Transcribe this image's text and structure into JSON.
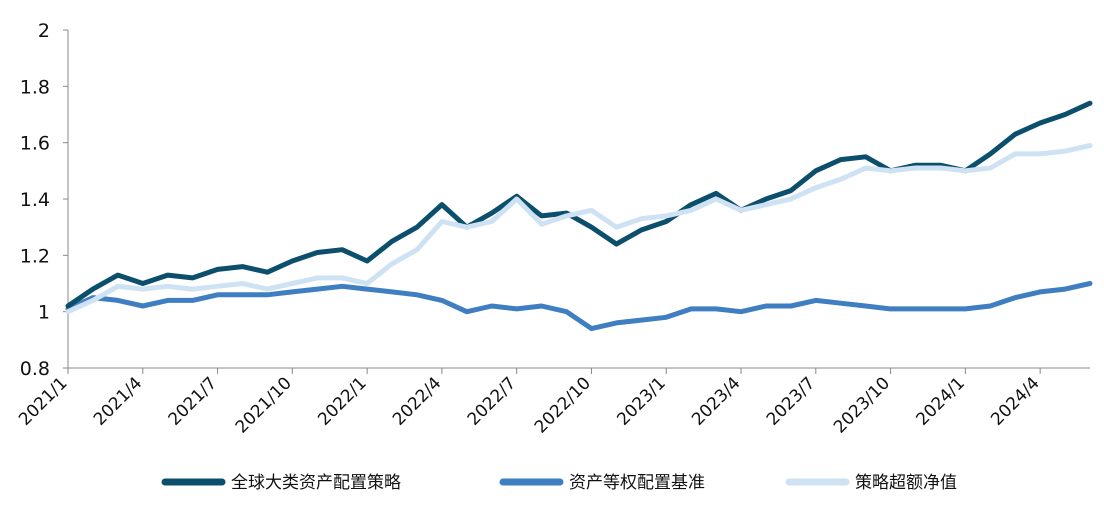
{
  "chart_data": {
    "type": "line",
    "title": "",
    "xlabel": "",
    "ylabel": "",
    "ylim": [
      0.8,
      2.0
    ],
    "yticks": [
      0.8,
      1,
      1.2,
      1.4,
      1.6,
      1.8,
      2
    ],
    "ytick_labels": [
      "0.8",
      "1",
      "1.2",
      "1.4",
      "1.6",
      "1.8",
      "2"
    ],
    "xticks": [
      "2021/1",
      "2021/4",
      "2021/7",
      "2021/10",
      "2022/1",
      "2022/4",
      "2022/7",
      "2022/10",
      "2023/1",
      "2023/4",
      "2023/7",
      "2023/10",
      "2024/1",
      "2024/4"
    ],
    "x": [
      "2021/1",
      "2021/2",
      "2021/3",
      "2021/4",
      "2021/5",
      "2021/6",
      "2021/7",
      "2021/8",
      "2021/9",
      "2021/10",
      "2021/11",
      "2021/12",
      "2022/1",
      "2022/2",
      "2022/3",
      "2022/4",
      "2022/5",
      "2022/6",
      "2022/7",
      "2022/8",
      "2022/9",
      "2022/10",
      "2022/11",
      "2022/12",
      "2023/1",
      "2023/2",
      "2023/3",
      "2023/4",
      "2023/5",
      "2023/6",
      "2023/7",
      "2023/8",
      "2023/9",
      "2023/10",
      "2023/11",
      "2023/12",
      "2024/1",
      "2024/2",
      "2024/3",
      "2024/4",
      "2024/5",
      "2024/6"
    ],
    "legend_position": "bottom",
    "grid": false,
    "series": [
      {
        "name": "全球大类资产配置策略",
        "color": "#0b4f6c",
        "values": [
          1.02,
          1.08,
          1.13,
          1.1,
          1.13,
          1.12,
          1.15,
          1.16,
          1.14,
          1.18,
          1.21,
          1.22,
          1.18,
          1.25,
          1.3,
          1.38,
          1.3,
          1.35,
          1.41,
          1.34,
          1.35,
          1.3,
          1.24,
          1.29,
          1.32,
          1.38,
          1.42,
          1.36,
          1.4,
          1.43,
          1.5,
          1.54,
          1.55,
          1.5,
          1.52,
          1.52,
          1.5,
          1.56,
          1.63,
          1.67,
          1.7,
          1.74
        ]
      },
      {
        "name": "资产等权配置基准",
        "color": "#3f7fc1",
        "values": [
          1.01,
          1.05,
          1.04,
          1.02,
          1.04,
          1.04,
          1.06,
          1.06,
          1.06,
          1.07,
          1.08,
          1.09,
          1.08,
          1.07,
          1.06,
          1.04,
          1.0,
          1.02,
          1.01,
          1.02,
          1.0,
          0.94,
          0.96,
          0.97,
          0.98,
          1.01,
          1.01,
          1.0,
          1.02,
          1.02,
          1.04,
          1.03,
          1.02,
          1.01,
          1.01,
          1.01,
          1.01,
          1.02,
          1.05,
          1.07,
          1.08,
          1.1
        ]
      },
      {
        "name": "策略超额净值",
        "color": "#cfe2f3",
        "values": [
          1.0,
          1.04,
          1.09,
          1.08,
          1.09,
          1.08,
          1.09,
          1.1,
          1.08,
          1.1,
          1.12,
          1.12,
          1.1,
          1.17,
          1.22,
          1.32,
          1.3,
          1.32,
          1.4,
          1.31,
          1.34,
          1.36,
          1.3,
          1.33,
          1.34,
          1.36,
          1.4,
          1.36,
          1.38,
          1.4,
          1.44,
          1.47,
          1.51,
          1.5,
          1.51,
          1.51,
          1.5,
          1.51,
          1.56,
          1.56,
          1.57,
          1.59
        ]
      }
    ]
  }
}
